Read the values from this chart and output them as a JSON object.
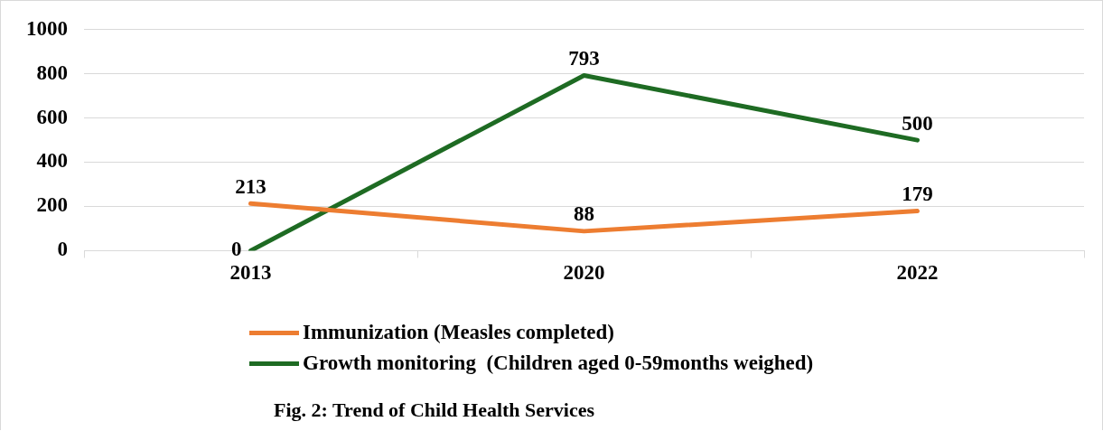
{
  "chart_data": {
    "type": "line",
    "categories": [
      "2013",
      "2020",
      "2022"
    ],
    "series": [
      {
        "name": "Immunization (Measles completed)",
        "color": "#ed7d31",
        "values": [
          213,
          88,
          179
        ]
      },
      {
        "name": "Growth monitoring  (Children aged 0-59months weighed)",
        "color": "#1e6b23",
        "values": [
          0,
          793,
          500
        ]
      }
    ],
    "ylim": [
      0,
      1000
    ],
    "yticks": [
      0,
      200,
      400,
      600,
      800,
      1000
    ],
    "grid": "y",
    "legend": "bottom",
    "data_labels": true,
    "marker": "none",
    "line_style": "solid",
    "annotations": [
      "Fig. 2: Trend of Child Health Services"
    ]
  }
}
